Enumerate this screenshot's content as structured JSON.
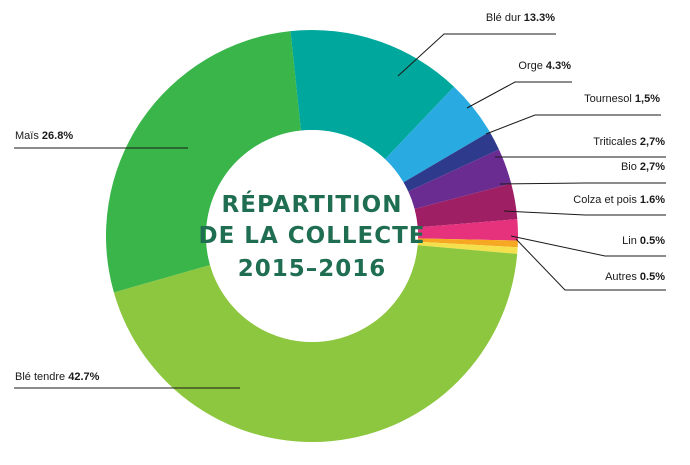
{
  "chart_data": {
    "type": "pie",
    "donut": true,
    "title_lines": [
      "RÉPARTITION",
      "DE LA COLLECTE",
      "2015–2016"
    ],
    "slices": [
      {
        "name": "Blé dur",
        "value_label": "13.3%",
        "value": 13.3,
        "color": "#00a79d"
      },
      {
        "name": "Orge",
        "value_label": "4.3%",
        "value": 4.3,
        "color": "#29abe2"
      },
      {
        "name": "Tournesol",
        "value_label": "1,5%",
        "value": 1.5,
        "color": "#2e3a8c"
      },
      {
        "name": "Triticales",
        "value_label": "2,7%",
        "value": 2.7,
        "color": "#6a2c91"
      },
      {
        "name": "Bio",
        "value_label": "2,7%",
        "value": 2.7,
        "color": "#9e1f63"
      },
      {
        "name": "Colza et pois",
        "value_label": "1.6%",
        "value": 1.6,
        "color": "#e6317d"
      },
      {
        "name": "Lin",
        "value_label": "0.5%",
        "value": 0.5,
        "color": "#f7a823"
      },
      {
        "name": "Autres",
        "value_label": "0.5%",
        "value": 0.5,
        "color": "#f4e04d"
      },
      {
        "name": "Blé tendre",
        "value_label": "42.7%",
        "value": 42.7,
        "color": "#8dc63f"
      },
      {
        "name": "Maïs",
        "value_label": "26.8%",
        "value": 26.8,
        "color": "#39b54a"
      }
    ],
    "legend": "none"
  }
}
